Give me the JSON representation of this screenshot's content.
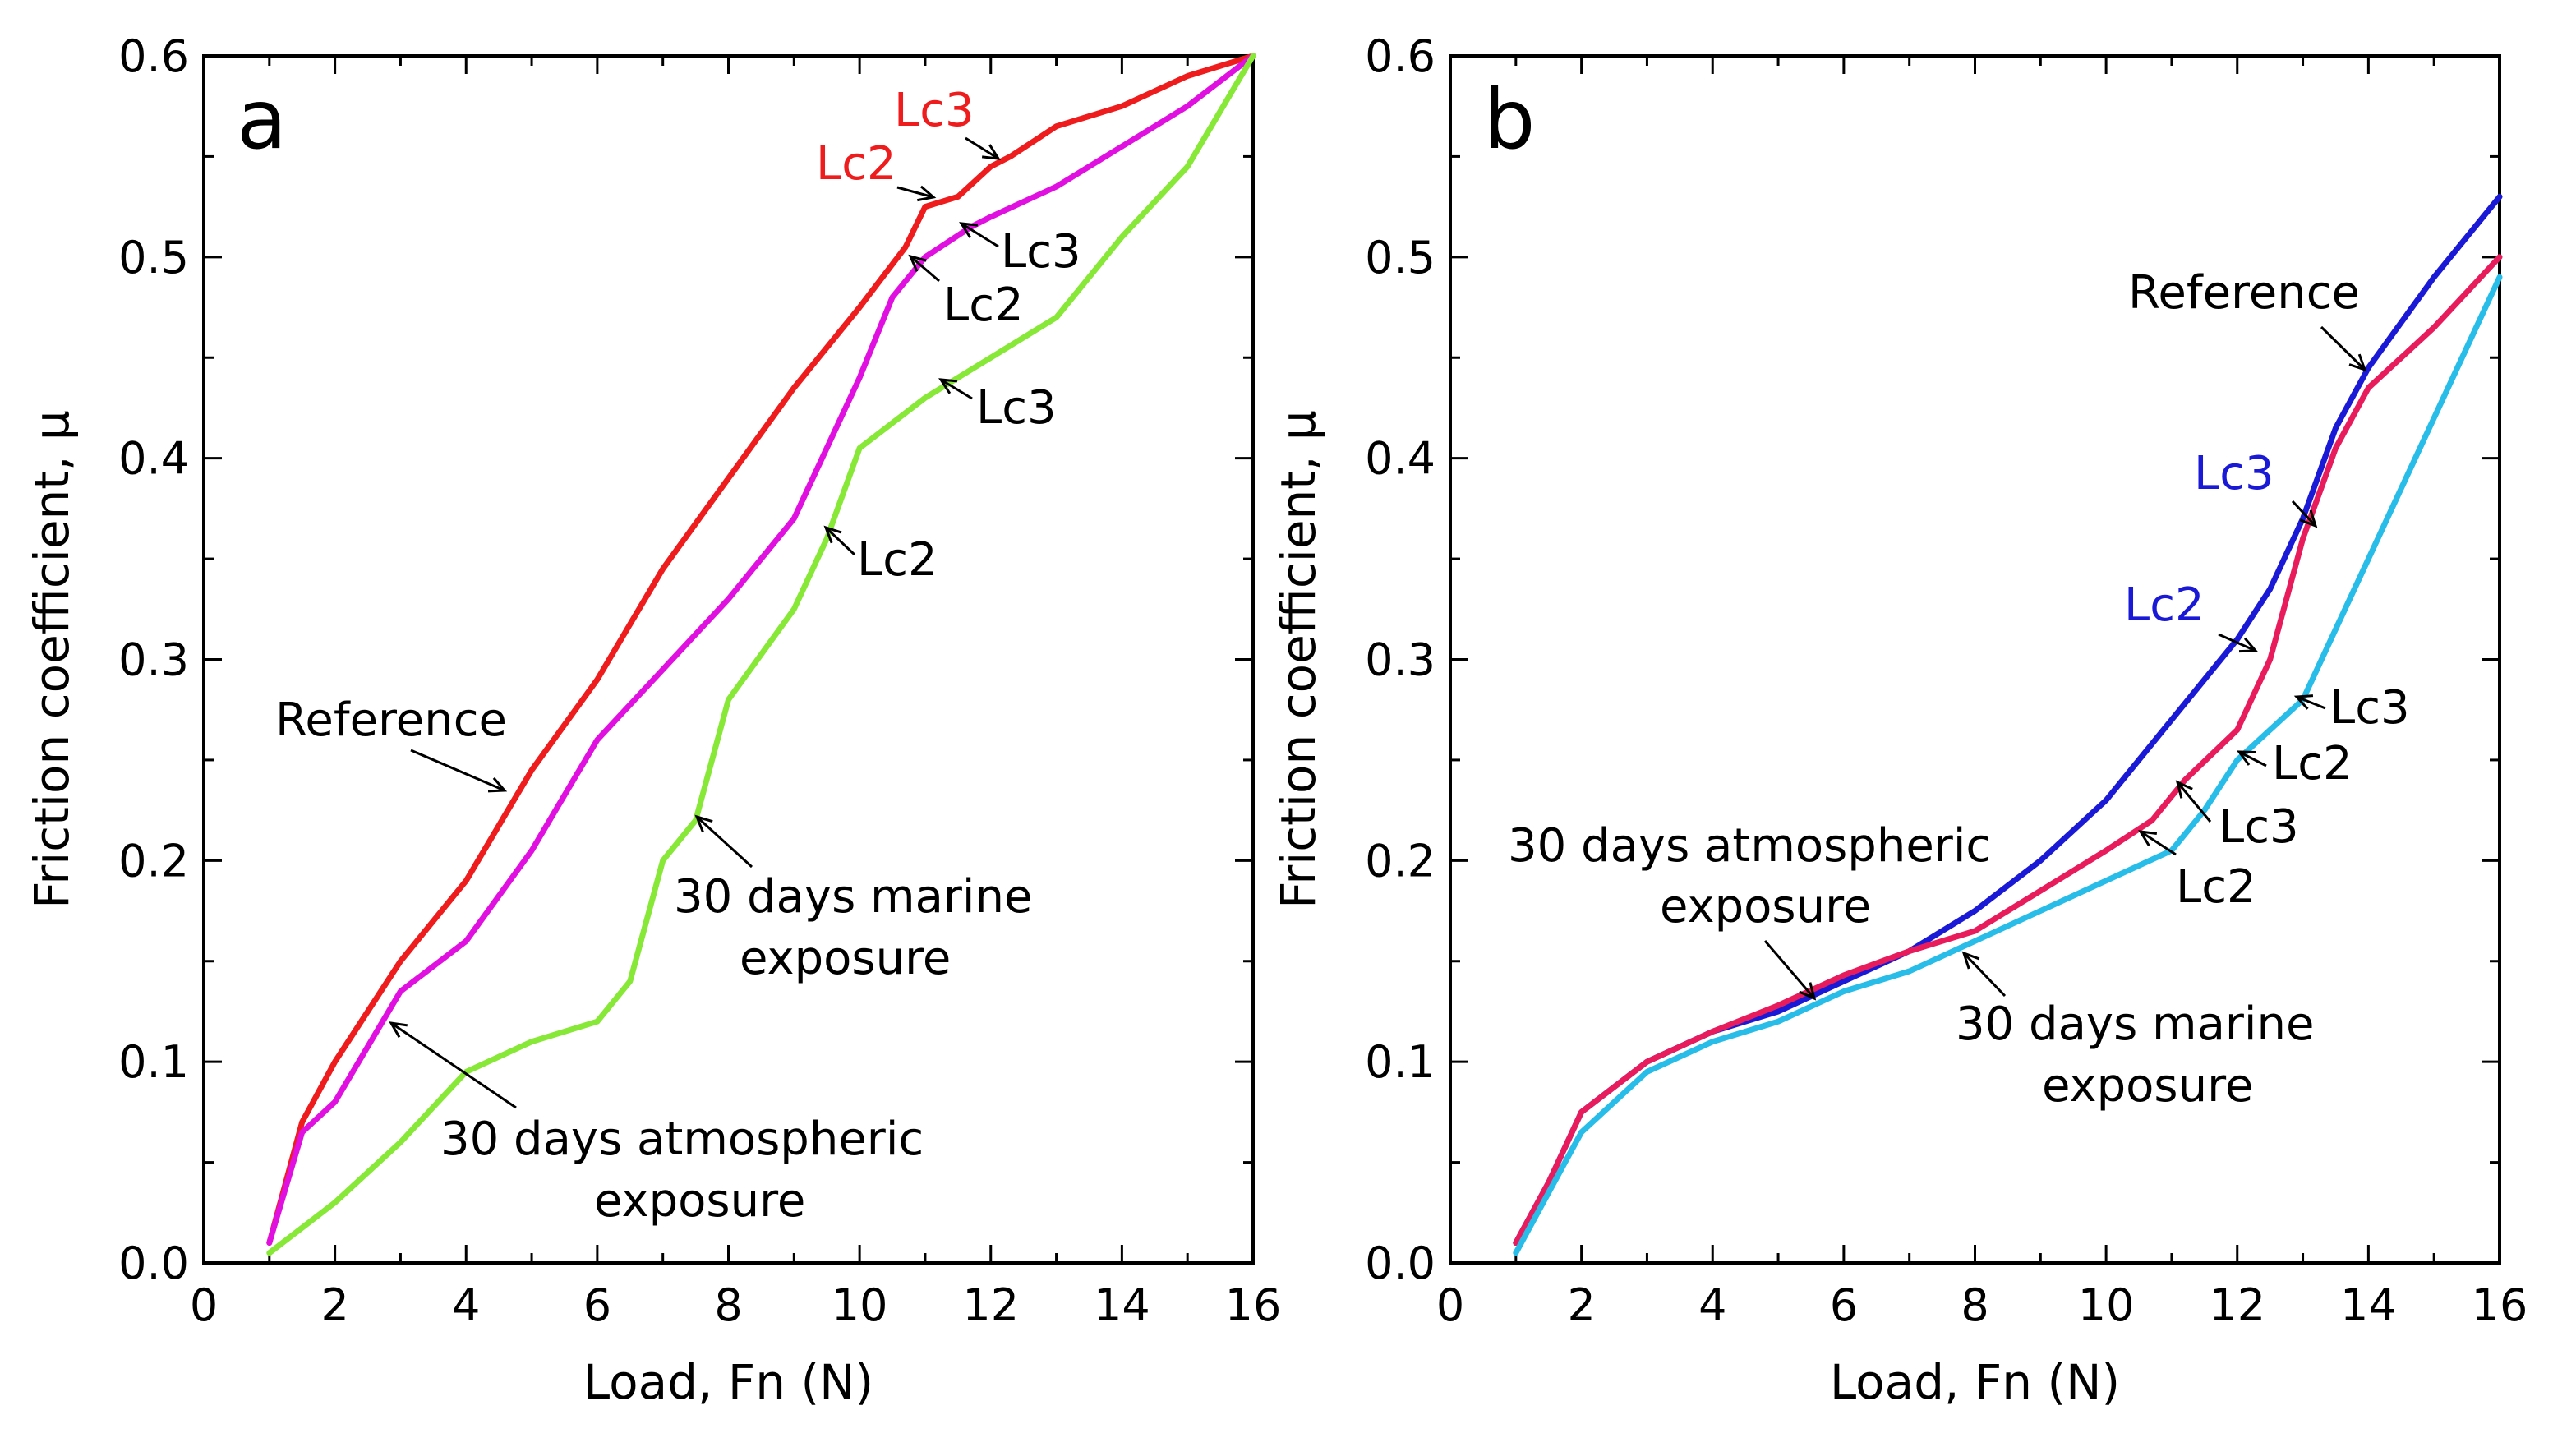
{
  "chart_data": [
    {
      "type": "line",
      "panel_label": "a",
      "xlabel": "Load, Fn (N)",
      "ylabel": "Friction coefficient, μ",
      "xlim": [
        0,
        16
      ],
      "ylim": [
        0,
        0.6
      ],
      "xticks": [
        0,
        2,
        4,
        6,
        8,
        10,
        12,
        14,
        16
      ],
      "yticks": [
        0.0,
        0.1,
        0.2,
        0.3,
        0.4,
        0.5,
        0.6
      ],
      "xtick_labels": [
        "0",
        "2",
        "4",
        "6",
        "8",
        "10",
        "12",
        "14",
        "16"
      ],
      "ytick_labels": [
        "0.0",
        "0.1",
        "0.2",
        "0.3",
        "0.4",
        "0.5",
        "0.6"
      ],
      "legend": "none",
      "series": [
        {
          "name": "Reference",
          "color": "#ee1c1c",
          "x": [
            1.0,
            1.5,
            2,
            3,
            4,
            5,
            6,
            7,
            8,
            9,
            10,
            10.7,
            11,
            11.5,
            12,
            12.3,
            13,
            14,
            15,
            16
          ],
          "y": [
            0.01,
            0.07,
            0.1,
            0.15,
            0.19,
            0.245,
            0.29,
            0.345,
            0.39,
            0.435,
            0.475,
            0.505,
            0.525,
            0.53,
            0.545,
            0.55,
            0.565,
            0.575,
            0.59,
            0.6
          ]
        },
        {
          "name": "30 days atmospheric exposure",
          "color": "#e010e0",
          "x": [
            1.0,
            1.5,
            2,
            3,
            4,
            5,
            6,
            7,
            8,
            9,
            10,
            10.5,
            11,
            11.7,
            12,
            13,
            14,
            15,
            16
          ],
          "y": [
            0.01,
            0.065,
            0.08,
            0.135,
            0.16,
            0.205,
            0.26,
            0.295,
            0.33,
            0.37,
            0.44,
            0.48,
            0.5,
            0.515,
            0.52,
            0.535,
            0.555,
            0.575,
            0.6
          ]
        },
        {
          "name": "30 days marine exposure",
          "color": "#88e838",
          "x": [
            1.0,
            2,
            3,
            4,
            5,
            6,
            6.5,
            7,
            7.5,
            8,
            9,
            9.5,
            10,
            11,
            11.5,
            12,
            13,
            14,
            15,
            16
          ],
          "y": [
            0.005,
            0.03,
            0.06,
            0.095,
            0.11,
            0.12,
            0.14,
            0.2,
            0.22,
            0.28,
            0.325,
            0.36,
            0.405,
            0.43,
            0.44,
            0.45,
            0.47,
            0.51,
            0.545,
            0.6
          ]
        }
      ],
      "annotations": [
        {
          "text": "Reference",
          "color": "#000000"
        },
        {
          "text": "30 days marine",
          "color": "#000000"
        },
        {
          "text": "exposure",
          "color": "#000000"
        },
        {
          "text": "30 days atmospheric",
          "color": "#000000"
        },
        {
          "text": "exposure",
          "color": "#000000"
        },
        {
          "text": "Lc3",
          "color": "#ee1c1c"
        },
        {
          "text": "Lc2",
          "color": "#ee1c1c"
        },
        {
          "text": "Lc3",
          "color": "#000000"
        },
        {
          "text": "Lc2",
          "color": "#000000"
        },
        {
          "text": "Lc3",
          "color": "#000000"
        },
        {
          "text": "Lc2",
          "color": "#000000"
        }
      ]
    },
    {
      "type": "line",
      "panel_label": "b",
      "xlabel": "Load, Fn (N)",
      "ylabel": "Friction coefficient, μ",
      "xlim": [
        0,
        16
      ],
      "ylim": [
        0,
        0.6
      ],
      "xticks": [
        0,
        2,
        4,
        6,
        8,
        10,
        12,
        14,
        16
      ],
      "yticks": [
        0.0,
        0.1,
        0.2,
        0.3,
        0.4,
        0.5,
        0.6
      ],
      "xtick_labels": [
        "0",
        "2",
        "4",
        "6",
        "8",
        "10",
        "12",
        "14",
        "16"
      ],
      "ytick_labels": [
        "0.0",
        "0.1",
        "0.2",
        "0.3",
        "0.4",
        "0.5",
        "0.6"
      ],
      "legend": "none",
      "series": [
        {
          "name": "Reference",
          "color": "#1a1ad6",
          "x": [
            1.0,
            1.5,
            2,
            3,
            4,
            5,
            6,
            7,
            8,
            9,
            10,
            11,
            11.5,
            12,
            12.5,
            13,
            13.5,
            14,
            15,
            16
          ],
          "y": [
            0.01,
            0.04,
            0.075,
            0.1,
            0.115,
            0.125,
            0.14,
            0.155,
            0.175,
            0.2,
            0.23,
            0.27,
            0.29,
            0.31,
            0.335,
            0.37,
            0.415,
            0.445,
            0.49,
            0.53
          ]
        },
        {
          "name": "30 days atmospheric exposure",
          "color": "#e81c5c",
          "x": [
            1.0,
            1.5,
            2,
            3,
            4,
            5,
            6,
            7,
            8,
            9,
            10,
            10.7,
            11.2,
            12,
            12.5,
            13,
            13.5,
            14,
            15,
            16
          ],
          "y": [
            0.01,
            0.04,
            0.075,
            0.1,
            0.115,
            0.128,
            0.143,
            0.155,
            0.165,
            0.185,
            0.205,
            0.22,
            0.24,
            0.265,
            0.3,
            0.36,
            0.405,
            0.435,
            0.465,
            0.5
          ]
        },
        {
          "name": "30 days marine exposure",
          "color": "#28bde8",
          "x": [
            1.0,
            1.5,
            2,
            3,
            4,
            5,
            6,
            7,
            8,
            9,
            10,
            11,
            11.5,
            12,
            12.5,
            13,
            14,
            15,
            16
          ],
          "y": [
            0.005,
            0.035,
            0.065,
            0.095,
            0.11,
            0.12,
            0.135,
            0.145,
            0.16,
            0.175,
            0.19,
            0.205,
            0.225,
            0.25,
            0.265,
            0.28,
            0.35,
            0.42,
            0.49
          ]
        }
      ],
      "annotations": [
        {
          "text": "Reference",
          "color": "#000000"
        },
        {
          "text": "Lc3",
          "color": "#1a1ad6"
        },
        {
          "text": "Lc2",
          "color": "#1a1ad6"
        },
        {
          "text": "Lc3",
          "color": "#000000"
        },
        {
          "text": "Lc2",
          "color": "#000000"
        },
        {
          "text": "Lc3",
          "color": "#000000"
        },
        {
          "text": "Lc2",
          "color": "#000000"
        },
        {
          "text": "30 days atmospheric",
          "color": "#000000"
        },
        {
          "text": "exposure",
          "color": "#000000"
        },
        {
          "text": "30 days marine",
          "color": "#000000"
        },
        {
          "text": "exposure",
          "color": "#000000"
        }
      ]
    }
  ]
}
